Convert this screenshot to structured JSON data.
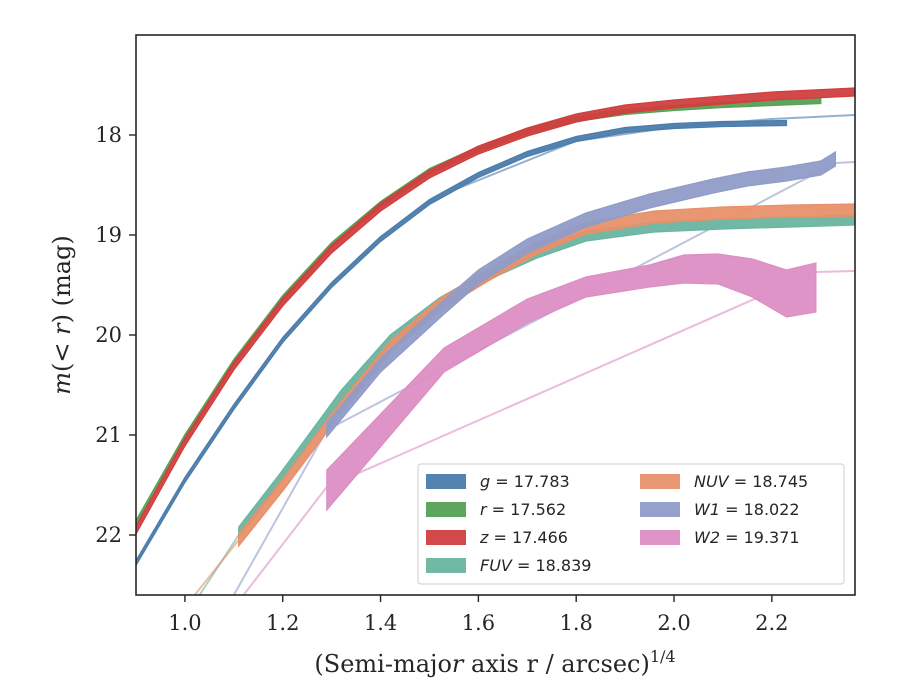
{
  "chart_data": {
    "type": "line",
    "xlabel": "(Semi-major axis r / arcsec)",
    "xlabel_var": "r",
    "xlabel_exp": "1/4",
    "ylabel": "m(< r) (mag)",
    "xlim": [
      0.9,
      2.37
    ],
    "ylim": [
      22.6,
      17.0
    ],
    "y_inverted": true,
    "grid": false,
    "legend_position": "lower-right",
    "xticks": [
      1.0,
      1.2,
      1.4,
      1.6,
      1.8,
      2.0,
      2.2
    ],
    "xtick_labels": [
      "1.0",
      "1.2",
      "1.4",
      "1.6",
      "1.8",
      "2.0",
      "2.2"
    ],
    "yticks": [
      18,
      19,
      20,
      21,
      22
    ],
    "ytick_labels": [
      "18",
      "19",
      "20",
      "21",
      "22"
    ],
    "series": [
      {
        "name": "g",
        "value": "17.783",
        "color": "#4c7cab",
        "x": [
          0.9,
          1.0,
          1.1,
          1.2,
          1.3,
          1.4,
          1.5,
          1.6,
          1.7,
          1.8,
          1.9,
          2.0,
          2.1,
          2.23
        ],
        "y": [
          22.28,
          21.45,
          20.72,
          20.05,
          19.5,
          19.04,
          18.67,
          18.4,
          18.19,
          18.04,
          17.95,
          17.91,
          17.89,
          17.88
        ],
        "band": 0.025,
        "model_x": [
          1.55,
          1.8,
          2.0,
          2.2,
          2.37
        ],
        "model_y": [
          18.55,
          18.06,
          17.92,
          17.84,
          17.8
        ]
      },
      {
        "name": "r",
        "value": "17.562",
        "color": "#55a155",
        "x": [
          0.9,
          1.0,
          1.1,
          1.2,
          1.3,
          1.4,
          1.5,
          1.6,
          1.7,
          1.8,
          1.9,
          2.0,
          2.1,
          2.2,
          2.3
        ],
        "y": [
          21.88,
          21.02,
          20.27,
          19.63,
          19.1,
          18.69,
          18.36,
          18.14,
          17.96,
          17.84,
          17.77,
          17.73,
          17.7,
          17.68,
          17.66
        ],
        "band": 0.025
      },
      {
        "name": "z",
        "value": "17.466",
        "color": "#d13e3e",
        "x": [
          0.9,
          1.0,
          1.1,
          1.2,
          1.3,
          1.4,
          1.5,
          1.6,
          1.7,
          1.8,
          1.9,
          2.0,
          2.1,
          2.2,
          2.37
        ],
        "y": [
          21.95,
          21.07,
          20.31,
          19.67,
          19.14,
          18.72,
          18.39,
          18.15,
          17.97,
          17.83,
          17.74,
          17.69,
          17.65,
          17.61,
          17.57
        ],
        "band": 0.04
      },
      {
        "name": "FUV",
        "value": "18.839",
        "color": "#6ab5a0",
        "x": [
          1.11,
          1.2,
          1.32,
          1.42,
          1.52,
          1.62,
          1.72,
          1.82,
          1.96,
          2.1,
          2.24,
          2.37
        ],
        "y": [
          21.97,
          21.4,
          20.6,
          20.05,
          19.68,
          19.4,
          19.18,
          19.01,
          18.92,
          18.89,
          18.87,
          18.85
        ],
        "band": 0.05,
        "model_x": [
          1.03,
          1.11
        ],
        "model_y": [
          22.6,
          22.0
        ]
      },
      {
        "name": "NUV",
        "value": "18.745",
        "color": "#e8906a",
        "x": [
          1.11,
          1.2,
          1.32,
          1.42,
          1.52,
          1.62,
          1.72,
          1.82,
          1.96,
          2.1,
          2.24,
          2.37
        ],
        "y": [
          22.05,
          21.5,
          20.72,
          20.12,
          19.7,
          19.4,
          19.13,
          18.93,
          18.82,
          18.78,
          18.76,
          18.75
        ],
        "band": 0.06,
        "model_x": [
          1.02,
          1.11
        ],
        "model_y": [
          22.6,
          22.05
        ]
      },
      {
        "name": "W1",
        "value": "18.022",
        "color": "#909cc8",
        "x": [
          1.29,
          1.4,
          1.53,
          1.6,
          1.7,
          1.82,
          1.95,
          2.08,
          2.15,
          2.23,
          2.3,
          2.33
        ],
        "y": [
          20.95,
          20.3,
          19.72,
          19.42,
          19.11,
          18.85,
          18.66,
          18.51,
          18.44,
          18.39,
          18.33,
          18.24
        ],
        "band": 0.07,
        "model_x": [
          1.1,
          1.29,
          2.33,
          2.37
        ],
        "model_y": [
          22.6,
          20.95,
          18.28,
          18.27
        ]
      },
      {
        "name": "W2",
        "value": "19.371",
        "color": "#dc8ec4",
        "x": [
          1.29,
          1.53,
          1.7,
          1.82,
          1.95,
          2.02,
          2.09,
          2.16,
          2.23,
          2.29
        ],
        "y": [
          21.55,
          20.25,
          19.76,
          19.52,
          19.4,
          19.33,
          19.33,
          19.42,
          19.57,
          19.52
        ],
        "band_lo": [
          0.2,
          0.12,
          0.12,
          0.1,
          0.12,
          0.15,
          0.16,
          0.2,
          0.25,
          0.25
        ],
        "band_hi": [
          0.2,
          0.12,
          0.12,
          0.1,
          0.1,
          0.13,
          0.14,
          0.18,
          0.22,
          0.24
        ],
        "model_x": [
          1.12,
          1.29,
          2.29,
          2.37
        ],
        "model_y": [
          22.6,
          21.52,
          19.37,
          19.36
        ]
      }
    ]
  }
}
